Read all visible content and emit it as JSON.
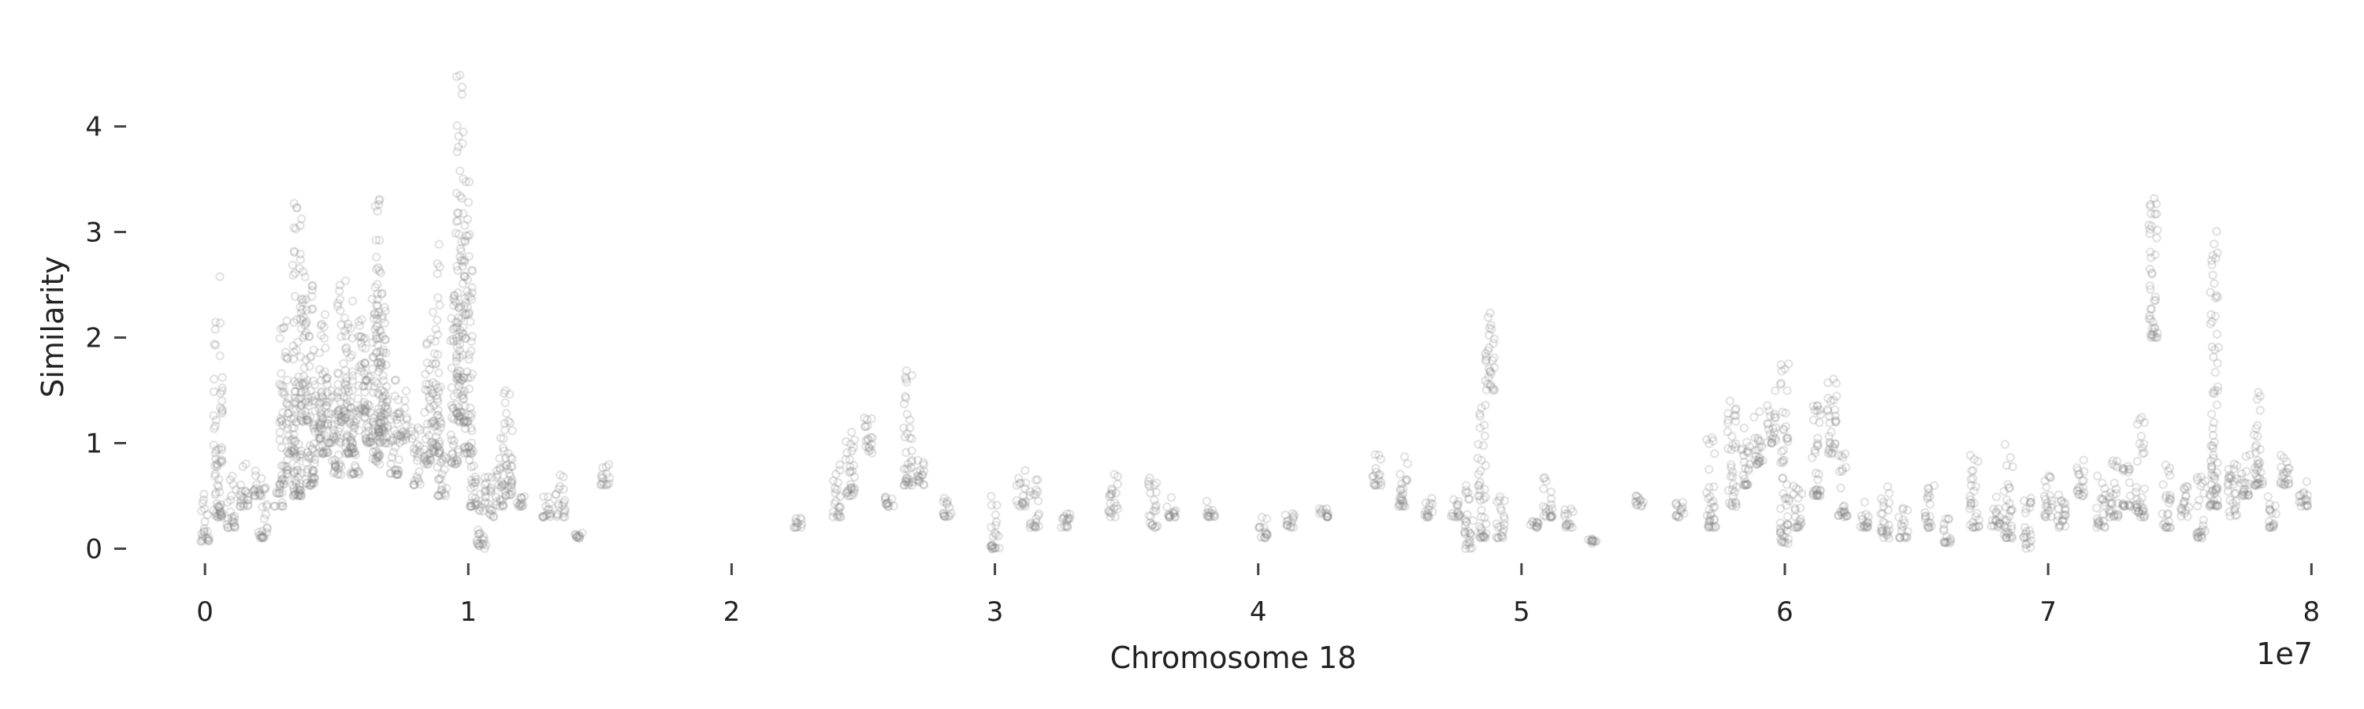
{
  "chart_data": {
    "type": "scatter",
    "title": "",
    "xlabel": "Chromosome 18",
    "ylabel": "Similarity",
    "x_offset_label": "1e7",
    "x_scale": 10000000,
    "xlim": [
      -0.15,
      8.05
    ],
    "ylim": [
      -0.25,
      4.75
    ],
    "xticks": [
      0,
      1,
      2,
      3,
      4,
      5,
      6,
      7,
      8
    ],
    "xtick_labels": [
      "0",
      "1",
      "2",
      "3",
      "4",
      "5",
      "6",
      "7",
      "8"
    ],
    "yticks": [
      0,
      1,
      2,
      3,
      4
    ],
    "ytick_labels": [
      "0",
      "1",
      "2",
      "3",
      "4"
    ],
    "grid": false,
    "marker_color": "#7f7f7f",
    "marker_alpha": 0.22,
    "clusters": [
      [
        0.0,
        0.05,
        0.55
      ],
      [
        0.05,
        0.3,
        2.6
      ],
      [
        0.1,
        0.2,
        0.7
      ],
      [
        0.15,
        0.4,
        0.85
      ],
      [
        0.2,
        0.5,
        0.75
      ],
      [
        0.22,
        0.1,
        0.6
      ],
      [
        0.28,
        0.4,
        0.7
      ],
      [
        0.3,
        0.6,
        2.2
      ],
      [
        0.33,
        0.9,
        1.5
      ],
      [
        0.35,
        0.5,
        3.3
      ],
      [
        0.38,
        1.2,
        2.7
      ],
      [
        0.4,
        0.6,
        2.5
      ],
      [
        0.43,
        1.1,
        1.6
      ],
      [
        0.45,
        0.9,
        2.4
      ],
      [
        0.48,
        1.0,
        1.6
      ],
      [
        0.5,
        0.7,
        1.3
      ],
      [
        0.52,
        1.2,
        2.5
      ],
      [
        0.55,
        0.9,
        2.6
      ],
      [
        0.57,
        0.7,
        1.5
      ],
      [
        0.6,
        1.3,
        2.3
      ],
      [
        0.62,
        1.0,
        1.8
      ],
      [
        0.65,
        0.8,
        3.4
      ],
      [
        0.67,
        1.1,
        2.7
      ],
      [
        0.68,
        1.0,
        1.9
      ],
      [
        0.72,
        0.7,
        1.6
      ],
      [
        0.75,
        1.0,
        1.5
      ],
      [
        0.8,
        0.6,
        1.2
      ],
      [
        0.85,
        0.8,
        2.0
      ],
      [
        0.88,
        0.9,
        2.9
      ],
      [
        0.9,
        0.5,
        1.0
      ],
      [
        0.95,
        0.8,
        2.4
      ],
      [
        0.97,
        1.2,
        4.6
      ],
      [
        1.0,
        0.9,
        3.5
      ],
      [
        1.02,
        0.4,
        1.0
      ],
      [
        1.05,
        0.0,
        0.6
      ],
      [
        1.08,
        0.3,
        0.7
      ],
      [
        1.12,
        0.4,
        1.1
      ],
      [
        1.15,
        0.5,
        1.6
      ],
      [
        1.2,
        0.4,
        0.5
      ],
      [
        1.3,
        0.3,
        0.5
      ],
      [
        1.35,
        0.3,
        0.7
      ],
      [
        1.42,
        0.1,
        0.15
      ],
      [
        1.52,
        0.6,
        0.8
      ],
      [
        2.25,
        0.2,
        0.3
      ],
      [
        2.4,
        0.3,
        0.8
      ],
      [
        2.45,
        0.5,
        1.3
      ],
      [
        2.52,
        0.9,
        1.25
      ],
      [
        2.6,
        0.4,
        0.5
      ],
      [
        2.67,
        0.6,
        1.75
      ],
      [
        2.72,
        0.6,
        0.9
      ],
      [
        2.82,
        0.3,
        0.5
      ],
      [
        3.0,
        0.0,
        0.5
      ],
      [
        3.1,
        0.4,
        0.75
      ],
      [
        3.15,
        0.2,
        0.7
      ],
      [
        3.27,
        0.2,
        0.4
      ],
      [
        3.45,
        0.3,
        0.75
      ],
      [
        3.6,
        0.2,
        0.7
      ],
      [
        3.67,
        0.3,
        0.5
      ],
      [
        3.82,
        0.3,
        0.45
      ],
      [
        4.02,
        0.1,
        0.3
      ],
      [
        4.12,
        0.2,
        0.35
      ],
      [
        4.25,
        0.3,
        0.45
      ],
      [
        4.45,
        0.6,
        0.9
      ],
      [
        4.55,
        0.4,
        1.0
      ],
      [
        4.65,
        0.3,
        0.5
      ],
      [
        4.75,
        0.3,
        0.5
      ],
      [
        4.8,
        0.0,
        0.7
      ],
      [
        4.85,
        0.1,
        1.4
      ],
      [
        4.88,
        1.5,
        2.35
      ],
      [
        4.92,
        0.1,
        0.5
      ],
      [
        5.05,
        0.2,
        0.3
      ],
      [
        5.1,
        0.3,
        0.75
      ],
      [
        5.18,
        0.2,
        0.4
      ],
      [
        5.27,
        0.05,
        0.1
      ],
      [
        5.45,
        0.4,
        0.5
      ],
      [
        5.6,
        0.3,
        0.45
      ],
      [
        5.72,
        0.2,
        1.1
      ],
      [
        5.8,
        0.4,
        1.4
      ],
      [
        5.85,
        0.6,
        1.2
      ],
      [
        5.9,
        0.8,
        1.3
      ],
      [
        5.95,
        1.0,
        1.5
      ],
      [
        6.0,
        0.05,
        1.8
      ],
      [
        6.05,
        0.2,
        0.6
      ],
      [
        6.12,
        0.5,
        1.5
      ],
      [
        6.18,
        0.9,
        1.7
      ],
      [
        6.22,
        0.3,
        0.9
      ],
      [
        6.3,
        0.2,
        0.45
      ],
      [
        6.38,
        0.1,
        0.7
      ],
      [
        6.45,
        0.1,
        0.4
      ],
      [
        6.55,
        0.2,
        0.6
      ],
      [
        6.62,
        0.05,
        0.3
      ],
      [
        6.72,
        0.2,
        0.95
      ],
      [
        6.8,
        0.2,
        0.5
      ],
      [
        6.85,
        0.1,
        1.0
      ],
      [
        6.92,
        0.0,
        0.5
      ],
      [
        7.0,
        0.3,
        0.7
      ],
      [
        7.05,
        0.2,
        0.6
      ],
      [
        7.12,
        0.5,
        0.85
      ],
      [
        7.2,
        0.2,
        0.7
      ],
      [
        7.25,
        0.3,
        0.95
      ],
      [
        7.3,
        0.4,
        0.8
      ],
      [
        7.35,
        0.3,
        1.3
      ],
      [
        7.4,
        2.0,
        3.35
      ],
      [
        7.45,
        0.2,
        0.8
      ],
      [
        7.52,
        0.3,
        0.6
      ],
      [
        7.58,
        0.1,
        0.7
      ],
      [
        7.63,
        0.4,
        3.05
      ],
      [
        7.7,
        0.3,
        1.0
      ],
      [
        7.75,
        0.5,
        0.9
      ],
      [
        7.8,
        0.6,
        1.6
      ],
      [
        7.85,
        0.2,
        0.5
      ],
      [
        7.9,
        0.6,
        1.0
      ],
      [
        7.97,
        0.4,
        0.7
      ]
    ]
  }
}
